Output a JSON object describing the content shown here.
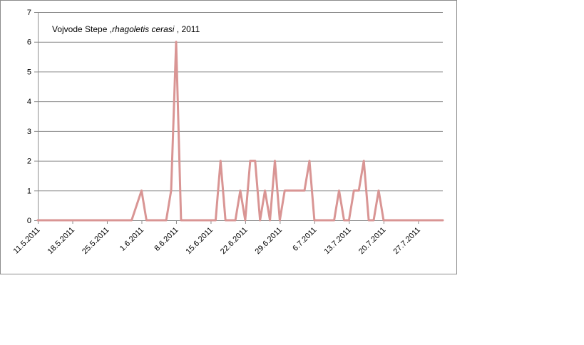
{
  "chart_data": {
    "type": "line",
    "title_parts": [
      "Vojvode Stepe ,",
      "rhagoletis cerasi",
      " , 2011"
    ],
    "xlabel": "",
    "ylabel": "",
    "ylim": [
      0,
      7
    ],
    "yticks": [
      "0",
      "1",
      "2",
      "3",
      "4",
      "5",
      "6",
      "7"
    ],
    "x_tick_labels": [
      "11.5.2011",
      "18.5.2011",
      "25.5.2011",
      "1.6.2011",
      "8.6.2011",
      "15.6.2011",
      "22.6.2011",
      "29.6.2011",
      "6.7.2011",
      "13.7.2011",
      "20.7.2011",
      "27.7.2011"
    ],
    "grid": "horizontal",
    "legend": "none",
    "line_color": "#d99594",
    "x_days_range": [
      0,
      82
    ],
    "series": [
      {
        "points": [
          [
            "11.5.2011",
            0
          ],
          [
            "30.5.2011",
            0
          ],
          [
            "1.6.2011",
            1
          ],
          [
            "2.6.2011",
            0
          ],
          [
            "6.6.2011",
            0
          ],
          [
            "7.6.2011",
            1
          ],
          [
            "8.6.2011",
            6
          ],
          [
            "9.6.2011",
            0
          ],
          [
            "16.6.2011",
            0
          ],
          [
            "17.6.2011",
            2
          ],
          [
            "18.6.2011",
            0
          ],
          [
            "20.6.2011",
            0
          ],
          [
            "21.6.2011",
            1
          ],
          [
            "22.6.2011",
            0
          ],
          [
            "23.6.2011",
            2
          ],
          [
            "24.6.2011",
            2
          ],
          [
            "25.6.2011",
            0
          ],
          [
            "26.6.2011",
            1
          ],
          [
            "27.6.2011",
            0
          ],
          [
            "28.6.2011",
            2
          ],
          [
            "29.6.2011",
            0
          ],
          [
            "30.6.2011",
            1
          ],
          [
            "4.7.2011",
            1
          ],
          [
            "5.7.2011",
            2
          ],
          [
            "6.7.2011",
            0
          ],
          [
            "10.7.2011",
            0
          ],
          [
            "11.7.2011",
            1
          ],
          [
            "12.7.2011",
            0
          ],
          [
            "13.7.2011",
            0
          ],
          [
            "14.7.2011",
            1
          ],
          [
            "15.7.2011",
            1
          ],
          [
            "16.7.2011",
            2
          ],
          [
            "17.7.2011",
            0
          ],
          [
            "18.7.2011",
            0
          ],
          [
            "19.7.2011",
            1
          ],
          [
            "20.7.2011",
            0
          ],
          [
            "1.8.2011",
            0
          ]
        ]
      }
    ]
  }
}
